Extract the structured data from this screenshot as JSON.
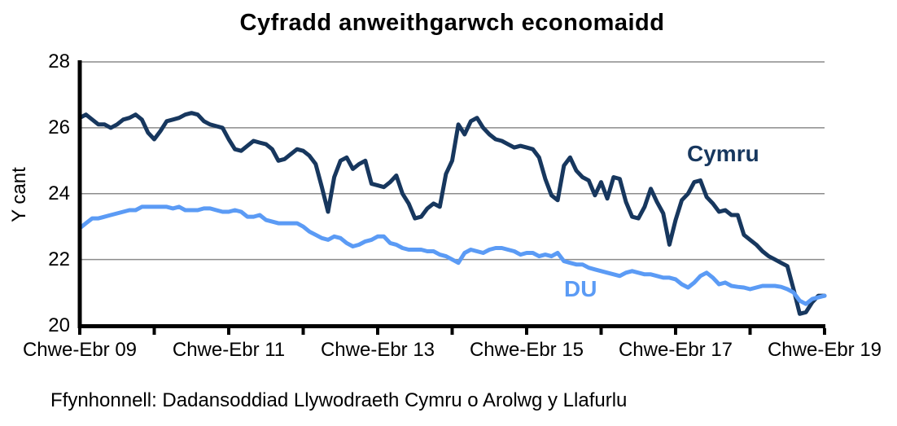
{
  "title": "Cyfradd anweithgarwch economaidd",
  "y_axis": {
    "title": "Y cant",
    "tick_labels": [
      "28",
      "26",
      "24",
      "22",
      "20"
    ]
  },
  "x_axis": {
    "tick_labels": [
      "Chwe-Ebr 09",
      "Chwe-Ebr 11",
      "Chwe-Ebr 13",
      "Chwe-Ebr 15",
      "Chwe-Ebr 17",
      "Chwe-Ebr 19"
    ]
  },
  "series_labels": {
    "cymru": "Cymru",
    "du": "DU"
  },
  "source_note": "Ffynhonnell: Dadansoddiad Llywodraeth Cymru o Arolwg y Llafurlu",
  "colors": {
    "cymru_line": "#17375E",
    "du_line": "#5B9BF5",
    "gridline": "#8C8C8C",
    "axis": "#000000",
    "background": "#FFFFFF"
  },
  "chart_data": {
    "type": "line",
    "title": "Cyfradd anweithgarwch economaidd",
    "xlabel": "",
    "ylabel": "Y cant",
    "ylim": [
      20,
      28
    ],
    "y_ticks": [
      28,
      26,
      24,
      22,
      20
    ],
    "grid": "horizontal gridlines at 22, 24, 26, 28; thick black left and bottom axes; small yearly tick marks below x-axis",
    "legend_position": "labels placed directly on chart (Cymru above dark line, DU below light line)",
    "x_description": "Monthly rolling 3-month periods from Chwe-Ebr 2009 to Chwe-Ebr 2019 (121 points); axis ticks each year, labels every 2 years",
    "x_tick_labels": [
      "Chwe-Ebr 09",
      "Chwe-Ebr 11",
      "Chwe-Ebr 13",
      "Chwe-Ebr 15",
      "Chwe-Ebr 17",
      "Chwe-Ebr 19"
    ],
    "x_label_every_n_points": 24,
    "x_tick_every_n_points": 12,
    "series": [
      {
        "name": "Cymru",
        "color": "#17375E",
        "values": [
          26.3,
          26.4,
          26.25,
          26.1,
          26.1,
          26.0,
          26.1,
          26.25,
          26.3,
          26.4,
          26.25,
          25.85,
          25.65,
          25.9,
          26.2,
          26.25,
          26.3,
          26.4,
          26.45,
          26.4,
          26.2,
          26.1,
          26.05,
          26.0,
          25.65,
          25.35,
          25.3,
          25.45,
          25.6,
          25.55,
          25.5,
          25.35,
          25.0,
          25.05,
          25.2,
          25.35,
          25.3,
          25.15,
          24.9,
          24.2,
          23.45,
          24.5,
          25.0,
          25.1,
          24.75,
          24.9,
          25.0,
          24.3,
          24.25,
          24.2,
          24.35,
          24.55,
          24.0,
          23.7,
          23.25,
          23.3,
          23.55,
          23.7,
          23.6,
          24.6,
          25.0,
          26.1,
          25.8,
          26.2,
          26.3,
          26.0,
          25.8,
          25.65,
          25.6,
          25.5,
          25.4,
          25.45,
          25.4,
          25.35,
          25.1,
          24.45,
          23.95,
          23.8,
          24.85,
          25.1,
          24.7,
          24.5,
          24.4,
          23.95,
          24.35,
          23.85,
          24.5,
          24.45,
          23.75,
          23.3,
          23.25,
          23.6,
          24.15,
          23.75,
          23.4,
          22.45,
          23.2,
          23.8,
          24.0,
          24.35,
          24.4,
          23.9,
          23.7,
          23.45,
          23.5,
          23.35,
          23.35,
          22.75,
          22.6,
          22.45,
          22.25,
          22.1,
          22.0,
          21.9,
          21.8,
          21.1,
          20.35,
          20.4,
          20.7,
          20.9,
          20.9
        ]
      },
      {
        "name": "DU",
        "color": "#5B9BF5",
        "values": [
          22.95,
          23.1,
          23.25,
          23.25,
          23.3,
          23.35,
          23.4,
          23.45,
          23.5,
          23.5,
          23.6,
          23.6,
          23.6,
          23.6,
          23.6,
          23.55,
          23.6,
          23.5,
          23.5,
          23.5,
          23.55,
          23.55,
          23.5,
          23.45,
          23.45,
          23.5,
          23.45,
          23.3,
          23.3,
          23.35,
          23.2,
          23.15,
          23.1,
          23.1,
          23.1,
          23.1,
          23.0,
          22.85,
          22.75,
          22.65,
          22.6,
          22.7,
          22.65,
          22.5,
          22.4,
          22.45,
          22.55,
          22.6,
          22.7,
          22.7,
          22.5,
          22.45,
          22.35,
          22.3,
          22.3,
          22.3,
          22.25,
          22.25,
          22.15,
          22.1,
          22.0,
          21.9,
          22.2,
          22.3,
          22.25,
          22.2,
          22.3,
          22.35,
          22.35,
          22.3,
          22.25,
          22.15,
          22.2,
          22.2,
          22.1,
          22.15,
          22.1,
          22.2,
          21.95,
          21.9,
          21.85,
          21.85,
          21.75,
          21.7,
          21.65,
          21.6,
          21.55,
          21.5,
          21.6,
          21.65,
          21.6,
          21.55,
          21.55,
          21.5,
          21.45,
          21.45,
          21.4,
          21.25,
          21.15,
          21.3,
          21.5,
          21.6,
          21.45,
          21.25,
          21.3,
          21.2,
          21.17,
          21.15,
          21.1,
          21.15,
          21.2,
          21.2,
          21.2,
          21.17,
          21.1,
          21.0,
          20.75,
          20.65,
          20.8,
          20.85,
          20.9
        ]
      }
    ]
  }
}
